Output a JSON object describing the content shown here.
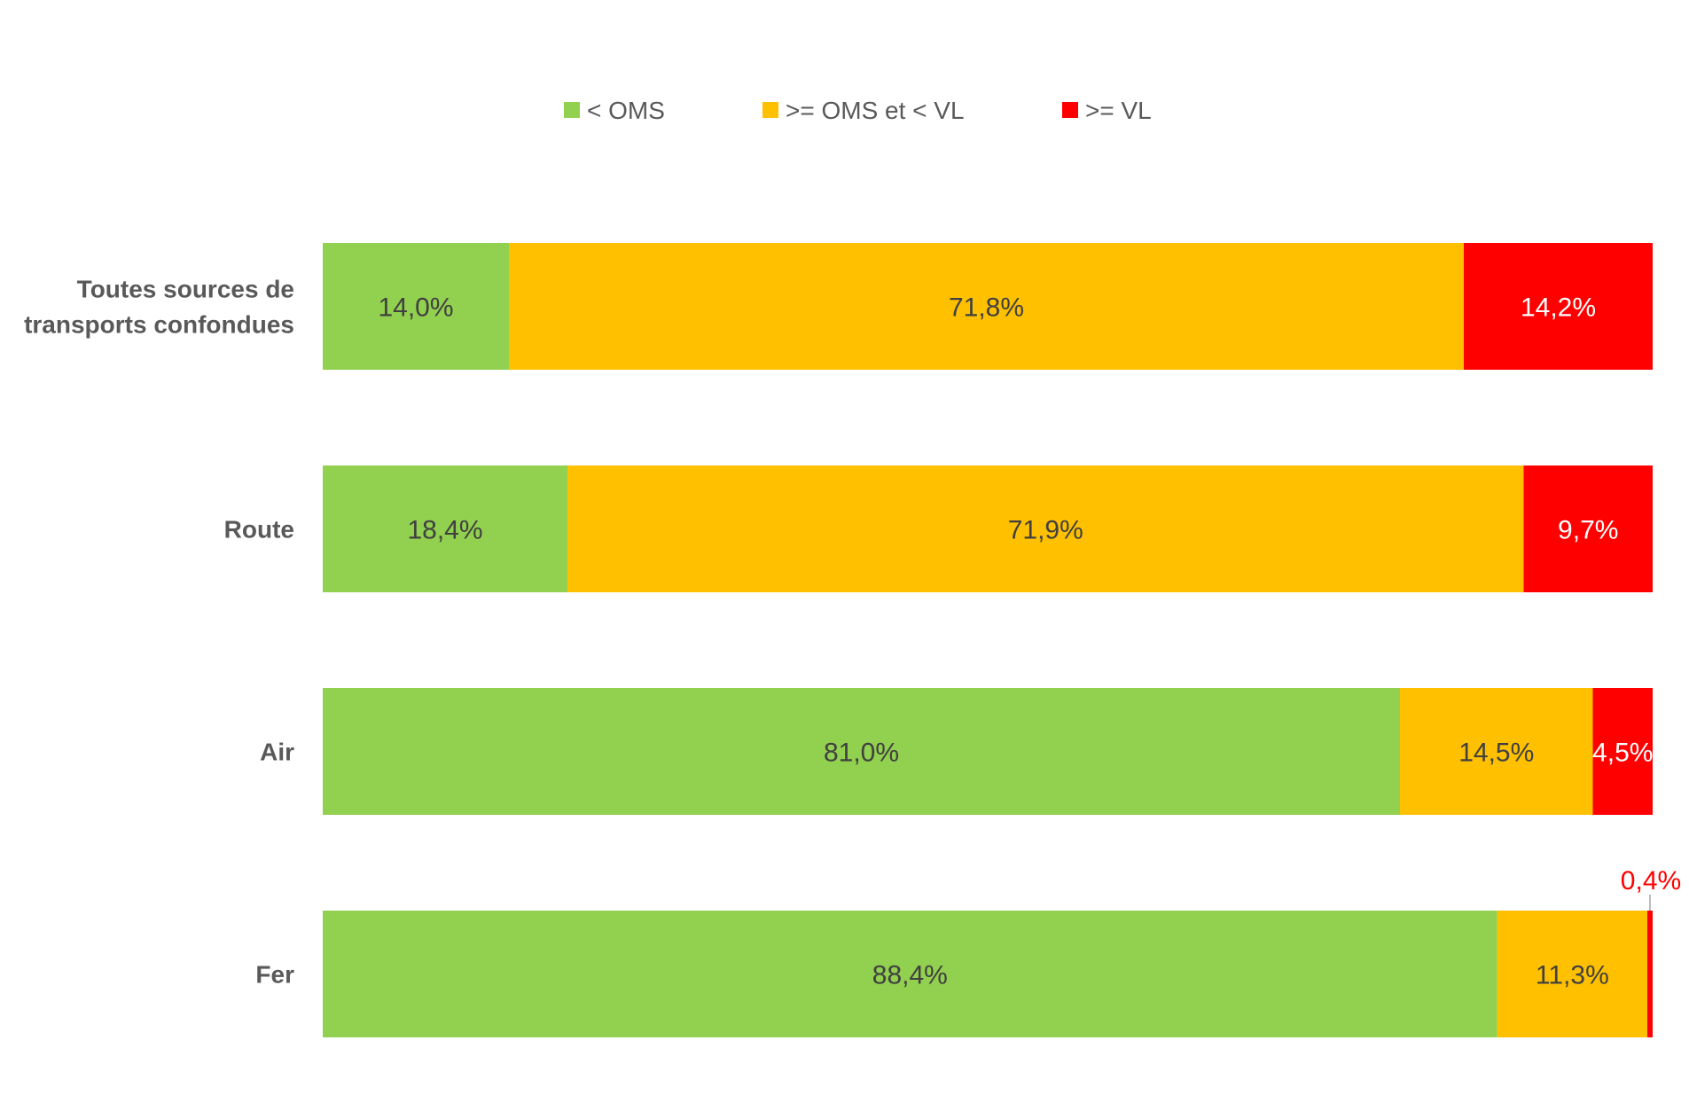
{
  "chart_data": {
    "type": "bar",
    "orientation": "horizontal",
    "stacked": true,
    "percent": true,
    "title": "",
    "xlabel": "",
    "ylabel": "",
    "xlim": [
      0,
      100
    ],
    "grid": false,
    "legend_position": "top",
    "categories": [
      "Toutes sources de transports confondues",
      "Route",
      "Air",
      "Fer"
    ],
    "category_lines": [
      [
        "Toutes sources de",
        "transports confondues"
      ],
      [
        "Route"
      ],
      [
        "Air"
      ],
      [
        "Fer"
      ]
    ],
    "series": [
      {
        "name": "< OMS",
        "color": "#92D050",
        "values": [
          14.0,
          18.4,
          81.0,
          88.4
        ],
        "labels": [
          "14,0%",
          "18,4%",
          "81,0%",
          "88,4%"
        ],
        "label_color": "#404040"
      },
      {
        "name": ">= OMS et < VL",
        "color": "#FFC000",
        "values": [
          71.8,
          71.9,
          14.5,
          11.3
        ],
        "labels": [
          "71,8%",
          "71,9%",
          "14,5%",
          "11,3%"
        ],
        "label_color": "#404040"
      },
      {
        "name": ">= VL",
        "color": "#FF0000",
        "values": [
          14.2,
          9.7,
          4.5,
          0.4
        ],
        "labels": [
          "14,2%",
          "9,7%",
          "4,5%",
          "0,4%"
        ],
        "label_color": "#FFFFFF"
      }
    ]
  }
}
